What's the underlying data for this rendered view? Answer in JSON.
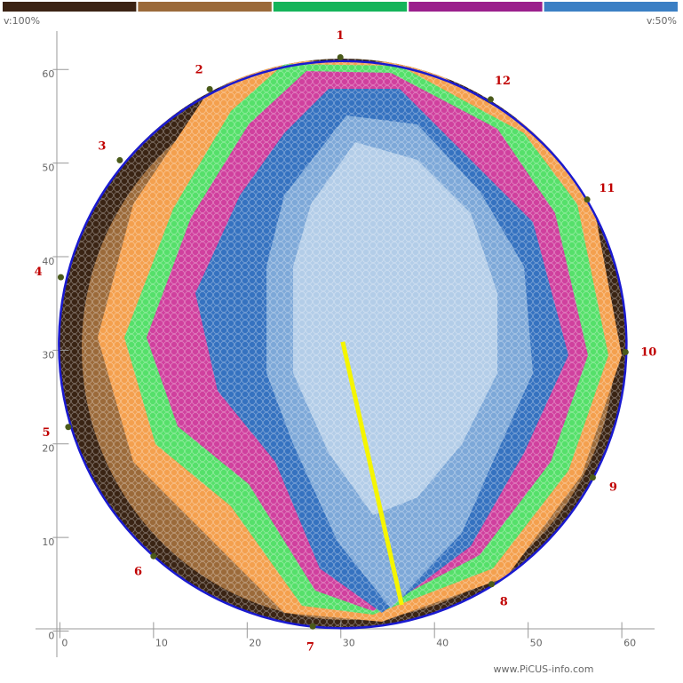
{
  "legend": {
    "colors": [
      "#3b2314",
      "#9b6a3a",
      "#14b45a",
      "#9b1f8c",
      "#3b7fc4"
    ],
    "left_label": "v:100%",
    "right_label": "v:50%"
  },
  "chart_data": {
    "type": "tomogram",
    "xlim": [
      -2.6,
      63.5
    ],
    "ylim": [
      -2.8,
      64.1
    ],
    "xticks": [
      0,
      10,
      20,
      30,
      40,
      50,
      60
    ],
    "yticks": [
      0,
      10,
      20,
      30,
      40,
      50,
      60
    ],
    "outline": {
      "cx": 30.2,
      "cy": 30.6,
      "r": 30.3,
      "color": "#1a1ad0"
    },
    "sensors": [
      {
        "label": "1",
        "x": 29.95,
        "y": 61.3
      },
      {
        "label": "2",
        "x": 16.0,
        "y": 57.9
      },
      {
        "label": "3",
        "x": 6.4,
        "y": 50.3
      },
      {
        "label": "4",
        "x": 0.1,
        "y": 37.8
      },
      {
        "label": "5",
        "x": 0.9,
        "y": 21.8
      },
      {
        "label": "6",
        "x": 10.0,
        "y": 8.0
      },
      {
        "label": "7",
        "x": 27.0,
        "y": 0.5
      },
      {
        "label": "8",
        "x": 46.1,
        "y": 5.0
      },
      {
        "label": "9",
        "x": 56.9,
        "y": 16.4
      },
      {
        "label": "10",
        "x": 60.4,
        "y": 29.8
      },
      {
        "label": "11",
        "x": 56.3,
        "y": 46.1
      },
      {
        "label": "12",
        "x": 46.0,
        "y": 56.8
      }
    ],
    "sensor_color": "#4a5a1a",
    "sensor_label_color": "#c00000",
    "measure_line": {
      "x": [
        30.2,
        36.5
      ],
      "y": [
        30.9,
        2.8
      ],
      "color": "#f5f500"
    }
  },
  "watermark": "www.PiCUS-info.com"
}
